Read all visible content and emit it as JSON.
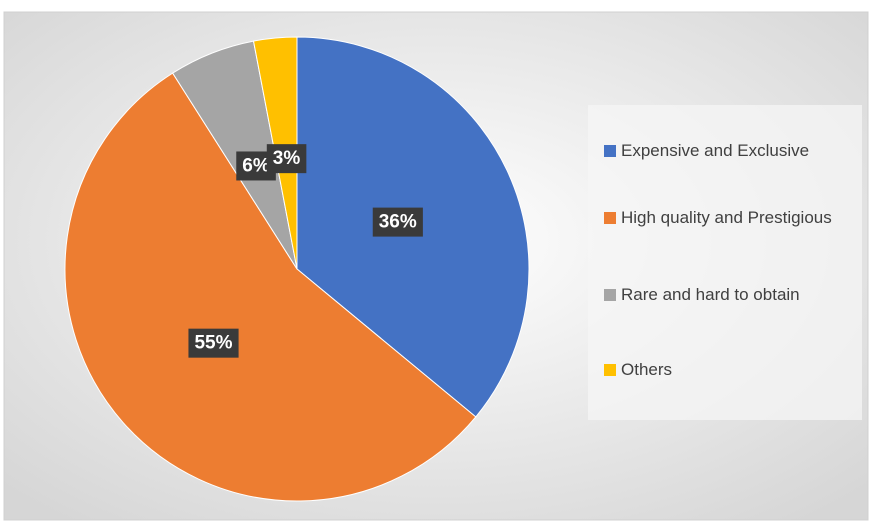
{
  "chart_data": {
    "type": "pie",
    "categories": [
      "Expensive and Exclusive",
      "High quality and Prestigious",
      "Rare and hard to obtain",
      "Others"
    ],
    "values": [
      36,
      55,
      6,
      3
    ],
    "value_labels": [
      "36%",
      "55%",
      "6%",
      "3%"
    ],
    "colors": [
      "#4472c4",
      "#ed7d31",
      "#a5a5a5",
      "#ffc000"
    ],
    "legend": "right"
  }
}
